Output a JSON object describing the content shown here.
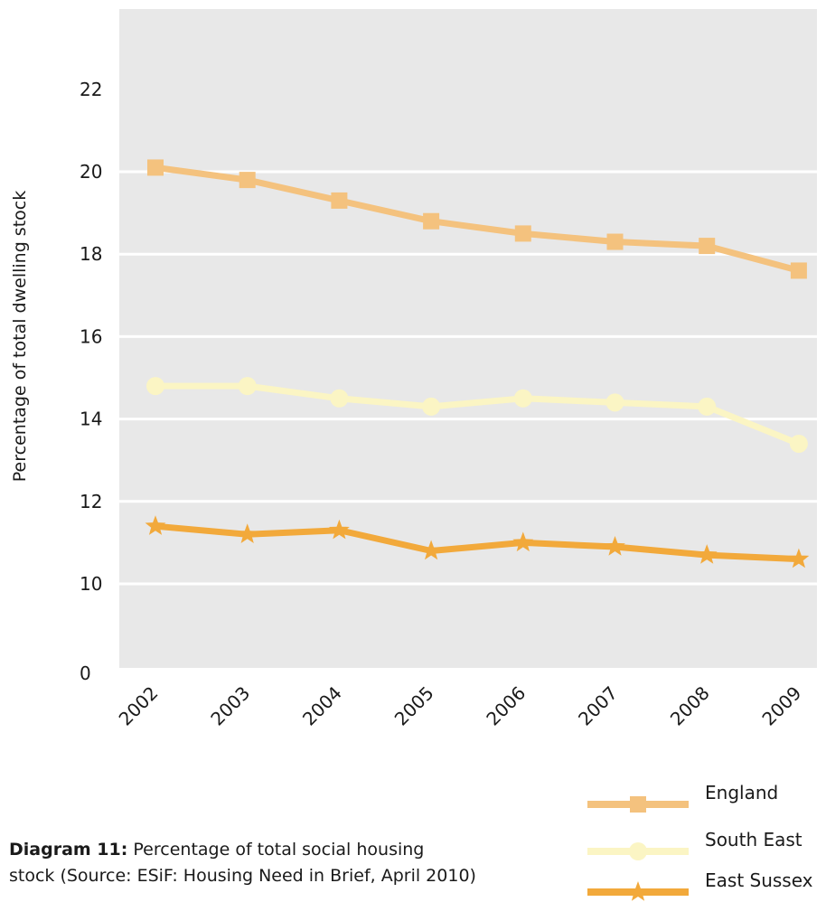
{
  "chart_data": {
    "type": "line",
    "ylabel": "Percentage of total dwelling stock",
    "categories": [
      "2002",
      "2003",
      "2004",
      "2005",
      "2006",
      "2007",
      "2008",
      "2009"
    ],
    "yticks": [
      "0",
      "10",
      "12",
      "14",
      "16",
      "18",
      "20",
      "22"
    ],
    "ylim": [
      9,
      22
    ],
    "y_axis_break": "axis jumps from 0 to 10",
    "grid": true,
    "legend_position": "bottom-right",
    "series": [
      {
        "name": "England",
        "marker": "square",
        "color": "#f4c27e",
        "values": [
          20.1,
          19.8,
          19.3,
          18.8,
          18.5,
          18.3,
          18.2,
          17.6
        ]
      },
      {
        "name": "South East",
        "marker": "circle",
        "color": "#fbf5c4",
        "values": [
          14.8,
          14.8,
          14.5,
          14.3,
          14.5,
          14.4,
          14.3,
          13.4
        ]
      },
      {
        "name": "East Sussex",
        "marker": "star",
        "color": "#f2a93b",
        "values": [
          11.4,
          11.2,
          11.3,
          10.8,
          11.0,
          10.9,
          10.7,
          10.6
        ]
      }
    ]
  },
  "caption": {
    "label": "Diagram 11:",
    "text_line1": " Percentage of total social housing",
    "text_line2": "stock (Source: ESiF: Housing Need in Brief, April 2010)"
  }
}
